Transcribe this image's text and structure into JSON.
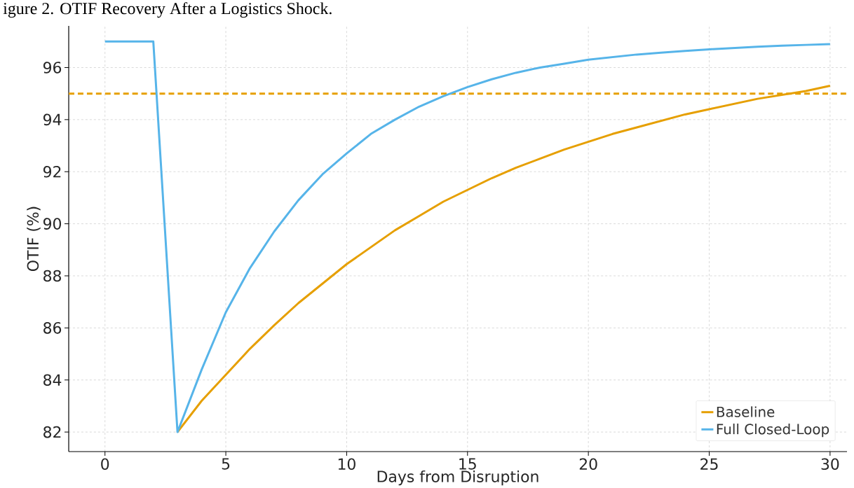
{
  "chart_data": {
    "type": "line",
    "title": "igure 2. OTIF Recovery After a Logistics Shock.",
    "xlabel": "Days from Disruption",
    "ylabel": "OTIF (%)",
    "x": [
      0,
      1,
      2,
      3,
      4,
      5,
      6,
      7,
      8,
      9,
      10,
      11,
      12,
      13,
      14,
      15,
      16,
      17,
      18,
      19,
      20,
      21,
      22,
      23,
      24,
      25,
      26,
      27,
      28,
      29,
      30
    ],
    "series": [
      {
        "name": "Baseline",
        "color": "#e69f00",
        "values": [
          null,
          null,
          null,
          82,
          83.2,
          84.2,
          85.2,
          86.1,
          86.95,
          87.7,
          88.45,
          89.1,
          89.75,
          90.3,
          90.85,
          91.3,
          91.75,
          92.15,
          92.5,
          92.85,
          93.15,
          93.45,
          93.7,
          93.95,
          94.2,
          94.4,
          94.6,
          94.8,
          94.95,
          95.1,
          95.3
        ]
      },
      {
        "name": "Full Closed-Loop",
        "color": "#56b4e9",
        "values": [
          97,
          97,
          97,
          82,
          84.4,
          86.6,
          88.3,
          89.7,
          90.9,
          91.9,
          92.7,
          93.45,
          94.0,
          94.5,
          94.9,
          95.25,
          95.55,
          95.8,
          96.0,
          96.15,
          96.3,
          96.4,
          96.5,
          96.57,
          96.64,
          96.7,
          96.75,
          96.8,
          96.84,
          96.87,
          96.9
        ]
      }
    ],
    "ref_lines": [
      {
        "axis": "y",
        "value": 95,
        "color": "#e69f00",
        "line_style": "dashed"
      }
    ],
    "xlim": [
      -1.5,
      30.7
    ],
    "ylim": [
      81.25,
      97.6
    ],
    "xticks": [
      0,
      5,
      10,
      15,
      20,
      25,
      30
    ],
    "yticks": [
      82,
      84,
      86,
      88,
      90,
      92,
      94,
      96
    ],
    "grid": true,
    "legend": "bottom right",
    "marker": "none",
    "line_style": "solid"
  }
}
